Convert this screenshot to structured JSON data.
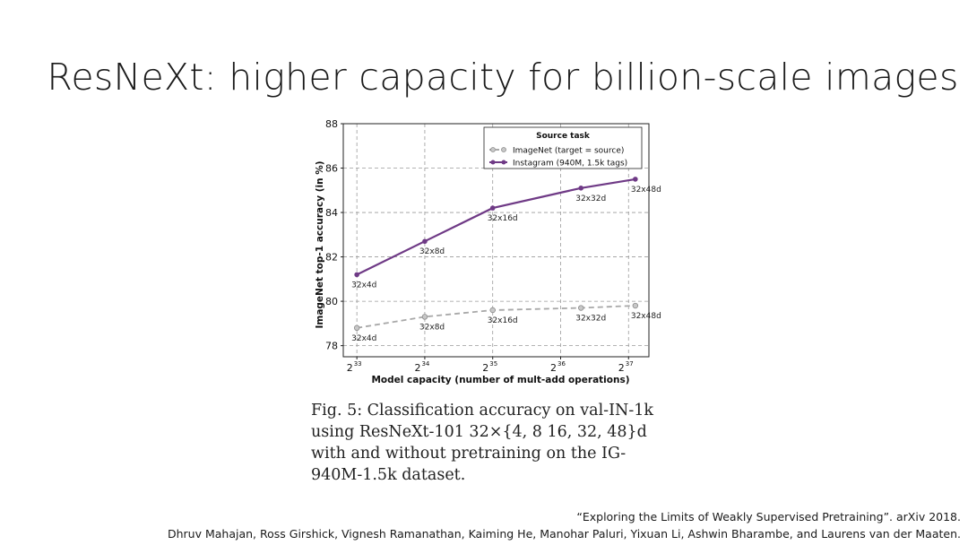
{
  "slide": {
    "title": "ResNeXt: higher capacity for billion-scale images"
  },
  "caption": {
    "lines": [
      "Fig. 5: Classification accuracy on val-IN-1k",
      "using ResNeXt-101 32×{4, 8 16, 32, 48}d",
      "with and without pretraining on the IG-",
      "940M-1.5k dataset."
    ]
  },
  "citation": {
    "paper": "“Exploring the Limits of Weakly Supervised Pretraining”. arXiv 2018.",
    "authors": "Dhruv Mahajan, Ross Girshick, Vignesh Ramanathan, Kaiming He, Manohar Paluri, Yixuan Li, Ashwin Bharambe, and Laurens van der Maaten."
  },
  "chart_data": {
    "type": "line",
    "xlabel": "Model capacity (number of mult-add operations)",
    "ylabel": "ImageNet top-1 accuracy (in %)",
    "x_scale": "log2",
    "xlim": [
      32.8,
      37.3
    ],
    "ylim": [
      77.5,
      88
    ],
    "x_ticks": [
      {
        "base": "2",
        "exp": "33",
        "value": 33
      },
      {
        "base": "2",
        "exp": "34",
        "value": 34
      },
      {
        "base": "2",
        "exp": "35",
        "value": 35
      },
      {
        "base": "2",
        "exp": "36",
        "value": 36
      },
      {
        "base": "2",
        "exp": "37",
        "value": 37
      }
    ],
    "y_ticks": [
      78,
      80,
      82,
      84,
      86,
      88
    ],
    "grid": true,
    "legend": {
      "title": "Source task",
      "position": "top-right"
    },
    "series": [
      {
        "name": "ImageNet (target = source)",
        "color": "#a8a8a8",
        "style": "dashed",
        "points": [
          {
            "x": 33.0,
            "y": 78.8,
            "label": "32x4d"
          },
          {
            "x": 34.0,
            "y": 79.3,
            "label": "32x8d"
          },
          {
            "x": 35.0,
            "y": 79.6,
            "label": "32x16d"
          },
          {
            "x": 36.3,
            "y": 79.7,
            "label": "32x32d"
          },
          {
            "x": 37.1,
            "y": 79.8,
            "label": "32x48d"
          }
        ]
      },
      {
        "name": "Instagram (940M, 1.5k tags)",
        "color": "#6f3a86",
        "style": "solid",
        "points": [
          {
            "x": 33.0,
            "y": 81.2,
            "label": "32x4d"
          },
          {
            "x": 34.0,
            "y": 82.7,
            "label": "32x8d"
          },
          {
            "x": 35.0,
            "y": 84.2,
            "label": "32x16d"
          },
          {
            "x": 36.3,
            "y": 85.1,
            "label": "32x32d"
          },
          {
            "x": 37.1,
            "y": 85.5,
            "label": "32x48d"
          }
        ]
      }
    ]
  }
}
